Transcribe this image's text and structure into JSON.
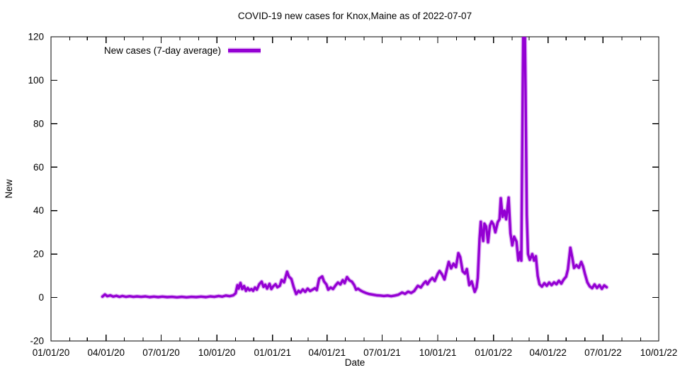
{
  "title": "COVID-19 new cases for Knox,Maine as of 2022-07-07",
  "legend": {
    "label": "New cases (7-day average)",
    "position": "top-left"
  },
  "axes": {
    "x_label": "Date",
    "y_label": "New",
    "x_tick_labels": [
      "01/01/20",
      "04/01/20",
      "07/01/20",
      "10/01/20",
      "01/01/21",
      "04/01/21",
      "07/01/21",
      "10/01/21",
      "01/01/22",
      "04/01/22",
      "07/01/22",
      "10/01/22"
    ],
    "y_tick_labels": [
      "-20",
      "0",
      "20",
      "40",
      "60",
      "80",
      "100",
      "120"
    ]
  },
  "colors": {
    "line": "#9400d3",
    "line_halo": "rgba(148,0,211,0.30)",
    "axis": "#000000",
    "background": "#ffffff"
  },
  "chart_data": {
    "type": "line",
    "title": "COVID-19 new cases for Knox,Maine as of 2022-07-07",
    "xlabel": "Date",
    "ylabel": "New",
    "x_range": [
      "2020-01-01",
      "2022-10-01"
    ],
    "ylim": [
      -20,
      120
    ],
    "x_major_ticks": [
      {
        "date": "2020-01-01",
        "label": "01/01/20"
      },
      {
        "date": "2020-04-01",
        "label": "04/01/20"
      },
      {
        "date": "2020-07-01",
        "label": "07/01/20"
      },
      {
        "date": "2020-10-01",
        "label": "10/01/20"
      },
      {
        "date": "2021-01-01",
        "label": "01/01/21"
      },
      {
        "date": "2021-04-01",
        "label": "04/01/21"
      },
      {
        "date": "2021-07-01",
        "label": "07/01/21"
      },
      {
        "date": "2021-10-01",
        "label": "10/01/21"
      },
      {
        "date": "2022-01-01",
        "label": "01/01/22"
      },
      {
        "date": "2022-04-01",
        "label": "04/01/22"
      },
      {
        "date": "2022-07-01",
        "label": "07/01/22"
      },
      {
        "date": "2022-10-01",
        "label": "10/01/22"
      }
    ],
    "x_minor_ticks": "monthly",
    "y_major_ticks": [
      -20,
      0,
      20,
      40,
      60,
      80,
      100,
      120
    ],
    "grid": false,
    "legend_position": "top-left",
    "note": "Spike in late Feb 2022 is clipped at the plot top (y = 120).",
    "series": [
      {
        "name": "New cases (7-day average)",
        "color": "#9400d3",
        "points": [
          [
            "2020-03-26",
            0.4
          ],
          [
            "2020-03-30",
            1.4
          ],
          [
            "2020-04-03",
            0.6
          ],
          [
            "2020-04-08",
            1.0
          ],
          [
            "2020-04-13",
            0.4
          ],
          [
            "2020-04-18",
            0.8
          ],
          [
            "2020-04-23",
            0.3
          ],
          [
            "2020-04-28",
            0.7
          ],
          [
            "2020-05-04",
            0.3
          ],
          [
            "2020-05-10",
            0.6
          ],
          [
            "2020-05-16",
            0.3
          ],
          [
            "2020-05-22",
            0.5
          ],
          [
            "2020-05-29",
            0.3
          ],
          [
            "2020-06-05",
            0.5
          ],
          [
            "2020-06-12",
            0.2
          ],
          [
            "2020-06-19",
            0.4
          ],
          [
            "2020-06-26",
            0.2
          ],
          [
            "2020-07-03",
            0.4
          ],
          [
            "2020-07-11",
            0.2
          ],
          [
            "2020-07-19",
            0.3
          ],
          [
            "2020-07-27",
            0.1
          ],
          [
            "2020-08-04",
            0.3
          ],
          [
            "2020-08-12",
            0.1
          ],
          [
            "2020-08-20",
            0.3
          ],
          [
            "2020-08-28",
            0.2
          ],
          [
            "2020-09-05",
            0.4
          ],
          [
            "2020-09-13",
            0.2
          ],
          [
            "2020-09-20",
            0.5
          ],
          [
            "2020-09-27",
            0.3
          ],
          [
            "2020-10-04",
            0.7
          ],
          [
            "2020-10-10",
            0.4
          ],
          [
            "2020-10-16",
            0.9
          ],
          [
            "2020-10-22",
            0.6
          ],
          [
            "2020-10-28",
            1.0
          ],
          [
            "2020-11-01",
            1.9
          ],
          [
            "2020-11-04",
            5.7
          ],
          [
            "2020-11-06",
            4.1
          ],
          [
            "2020-11-09",
            6.7
          ],
          [
            "2020-11-12",
            3.9
          ],
          [
            "2020-11-15",
            5.3
          ],
          [
            "2020-11-18",
            3.1
          ],
          [
            "2020-11-21",
            4.4
          ],
          [
            "2020-11-24",
            3.3
          ],
          [
            "2020-11-27",
            3.9
          ],
          [
            "2020-11-30",
            3.1
          ],
          [
            "2020-12-03",
            4.6
          ],
          [
            "2020-12-06",
            3.6
          ],
          [
            "2020-12-10",
            6.1
          ],
          [
            "2020-12-14",
            7.3
          ],
          [
            "2020-12-17",
            4.9
          ],
          [
            "2020-12-20",
            5.9
          ],
          [
            "2020-12-23",
            4.1
          ],
          [
            "2020-12-27",
            6.3
          ],
          [
            "2020-12-30",
            3.9
          ],
          [
            "2021-01-02",
            5.1
          ],
          [
            "2021-01-06",
            6.1
          ],
          [
            "2021-01-09",
            4.7
          ],
          [
            "2021-01-13",
            5.4
          ],
          [
            "2021-01-16",
            8.1
          ],
          [
            "2021-01-20",
            7.0
          ],
          [
            "2021-01-25",
            11.9
          ],
          [
            "2021-01-28",
            9.6
          ],
          [
            "2021-02-01",
            8.6
          ],
          [
            "2021-02-05",
            4.7
          ],
          [
            "2021-02-09",
            1.6
          ],
          [
            "2021-02-13",
            3.1
          ],
          [
            "2021-02-16",
            2.3
          ],
          [
            "2021-02-20",
            3.7
          ],
          [
            "2021-02-24",
            2.6
          ],
          [
            "2021-02-28",
            4.1
          ],
          [
            "2021-03-04",
            3.0
          ],
          [
            "2021-03-08",
            3.6
          ],
          [
            "2021-03-12",
            4.3
          ],
          [
            "2021-03-15",
            3.4
          ],
          [
            "2021-03-19",
            8.7
          ],
          [
            "2021-03-24",
            9.7
          ],
          [
            "2021-03-27",
            7.4
          ],
          [
            "2021-03-31",
            6.0
          ],
          [
            "2021-04-03",
            3.6
          ],
          [
            "2021-04-07",
            4.6
          ],
          [
            "2021-04-11",
            3.9
          ],
          [
            "2021-04-15",
            5.6
          ],
          [
            "2021-04-19",
            6.9
          ],
          [
            "2021-04-23",
            6.0
          ],
          [
            "2021-04-27",
            8.0
          ],
          [
            "2021-04-30",
            6.6
          ],
          [
            "2021-05-04",
            9.4
          ],
          [
            "2021-05-08",
            7.9
          ],
          [
            "2021-05-12",
            7.3
          ],
          [
            "2021-05-16",
            5.7
          ],
          [
            "2021-05-19",
            3.6
          ],
          [
            "2021-05-22",
            4.1
          ],
          [
            "2021-05-26",
            3.3
          ],
          [
            "2021-05-30",
            2.7
          ],
          [
            "2021-06-04",
            2.1
          ],
          [
            "2021-06-10",
            1.6
          ],
          [
            "2021-06-16",
            1.3
          ],
          [
            "2021-06-22",
            1.0
          ],
          [
            "2021-06-28",
            0.9
          ],
          [
            "2021-07-04",
            0.7
          ],
          [
            "2021-07-10",
            0.9
          ],
          [
            "2021-07-16",
            0.6
          ],
          [
            "2021-07-22",
            0.9
          ],
          [
            "2021-07-28",
            1.3
          ],
          [
            "2021-08-03",
            2.3
          ],
          [
            "2021-08-08",
            1.7
          ],
          [
            "2021-08-13",
            2.7
          ],
          [
            "2021-08-18",
            2.1
          ],
          [
            "2021-08-23",
            3.0
          ],
          [
            "2021-08-29",
            5.4
          ],
          [
            "2021-09-03",
            4.6
          ],
          [
            "2021-09-08",
            6.6
          ],
          [
            "2021-09-11",
            7.4
          ],
          [
            "2021-09-14",
            6.1
          ],
          [
            "2021-09-18",
            7.9
          ],
          [
            "2021-09-22",
            9.0
          ],
          [
            "2021-09-26",
            7.6
          ],
          [
            "2021-10-01",
            11.0
          ],
          [
            "2021-10-04",
            12.2
          ],
          [
            "2021-10-08",
            10.6
          ],
          [
            "2021-10-12",
            8.3
          ],
          [
            "2021-10-16",
            13.0
          ],
          [
            "2021-10-19",
            16.4
          ],
          [
            "2021-10-23",
            13.4
          ],
          [
            "2021-10-27",
            15.6
          ],
          [
            "2021-10-31",
            14.0
          ],
          [
            "2021-11-04",
            20.4
          ],
          [
            "2021-11-07",
            18.6
          ],
          [
            "2021-11-11",
            12.1
          ],
          [
            "2021-11-15",
            11.0
          ],
          [
            "2021-11-18",
            13.1
          ],
          [
            "2021-11-22",
            5.7
          ],
          [
            "2021-11-26",
            7.4
          ],
          [
            "2021-12-01",
            2.6
          ],
          [
            "2021-12-04",
            4.6
          ],
          [
            "2021-12-06",
            9.0
          ],
          [
            "2021-12-09",
            27.0
          ],
          [
            "2021-12-11",
            34.9
          ],
          [
            "2021-12-13",
            29.0
          ],
          [
            "2021-12-15",
            26.0
          ],
          [
            "2021-12-17",
            34.0
          ],
          [
            "2021-12-20",
            32.6
          ],
          [
            "2021-12-23",
            25.4
          ],
          [
            "2021-12-26",
            33.0
          ],
          [
            "2021-12-29",
            35.0
          ],
          [
            "2022-01-01",
            33.6
          ],
          [
            "2022-01-04",
            30.0
          ],
          [
            "2022-01-08",
            34.7
          ],
          [
            "2022-01-11",
            36.0
          ],
          [
            "2022-01-13",
            45.7
          ],
          [
            "2022-01-16",
            37.1
          ],
          [
            "2022-01-19",
            40.0
          ],
          [
            "2022-01-22",
            36.0
          ],
          [
            "2022-01-26",
            46.0
          ],
          [
            "2022-01-29",
            29.6
          ],
          [
            "2022-02-01",
            24.0
          ],
          [
            "2022-02-04",
            28.0
          ],
          [
            "2022-02-08",
            25.7
          ],
          [
            "2022-02-11",
            17.1
          ],
          [
            "2022-02-14",
            21.0
          ],
          [
            "2022-02-16",
            17.0
          ],
          [
            "2022-02-17",
            55.0
          ],
          [
            "2022-02-19",
            120.0
          ],
          [
            "2022-02-22",
            120.0
          ],
          [
            "2022-02-23",
            95.0
          ],
          [
            "2022-02-25",
            38.0
          ],
          [
            "2022-02-27",
            20.0
          ],
          [
            "2022-03-02",
            17.3
          ],
          [
            "2022-03-06",
            20.0
          ],
          [
            "2022-03-09",
            17.0
          ],
          [
            "2022-03-12",
            19.0
          ],
          [
            "2022-03-15",
            10.0
          ],
          [
            "2022-03-18",
            6.1
          ],
          [
            "2022-03-22",
            5.0
          ],
          [
            "2022-03-26",
            6.6
          ],
          [
            "2022-03-30",
            5.4
          ],
          [
            "2022-04-03",
            6.9
          ],
          [
            "2022-04-07",
            5.7
          ],
          [
            "2022-04-11",
            7.0
          ],
          [
            "2022-04-15",
            6.1
          ],
          [
            "2022-04-19",
            7.7
          ],
          [
            "2022-04-23",
            6.4
          ],
          [
            "2022-04-27",
            8.3
          ],
          [
            "2022-05-01",
            9.6
          ],
          [
            "2022-05-04",
            13.0
          ],
          [
            "2022-05-08",
            22.9
          ],
          [
            "2022-05-11",
            18.6
          ],
          [
            "2022-05-14",
            13.6
          ],
          [
            "2022-05-18",
            14.9
          ],
          [
            "2022-05-22",
            13.7
          ],
          [
            "2022-05-26",
            16.4
          ],
          [
            "2022-05-29",
            14.3
          ],
          [
            "2022-06-01",
            11.0
          ],
          [
            "2022-06-05",
            7.0
          ],
          [
            "2022-06-09",
            5.1
          ],
          [
            "2022-06-13",
            4.3
          ],
          [
            "2022-06-17",
            6.0
          ],
          [
            "2022-06-21",
            4.4
          ],
          [
            "2022-06-25",
            5.7
          ],
          [
            "2022-06-29",
            4.0
          ],
          [
            "2022-07-03",
            5.6
          ],
          [
            "2022-07-07",
            4.7
          ]
        ]
      }
    ]
  }
}
